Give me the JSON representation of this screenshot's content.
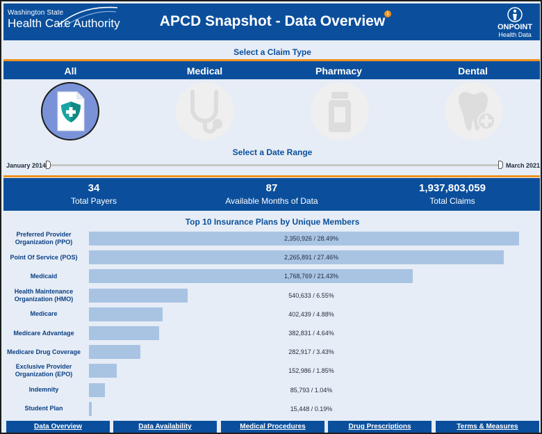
{
  "header": {
    "logo_line1": "Washington State",
    "logo_line2": "Health Care Authority",
    "title": "APCD Snapshot - Data Overview",
    "info_badge": "i",
    "partner_line1": "ONPOINT",
    "partner_line2": "Health Data"
  },
  "claim_type": {
    "heading": "Select a Claim Type",
    "options": [
      {
        "label": "All",
        "icon": "shield-plus-document-icon",
        "selected": true
      },
      {
        "label": "Medical",
        "icon": "stethoscope-icon",
        "selected": false
      },
      {
        "label": "Pharmacy",
        "icon": "pill-bottle-icon",
        "selected": false
      },
      {
        "label": "Dental",
        "icon": "tooth-plus-icon",
        "selected": false
      }
    ]
  },
  "date_range": {
    "heading": "Select a Date Range",
    "start": "January 2014",
    "end": "March 2021",
    "start_fraction": 0,
    "end_fraction": 1
  },
  "stats": [
    {
      "value": "34",
      "label": "Total Payers"
    },
    {
      "value": "87",
      "label": "Available Months of Data"
    },
    {
      "value": "1,937,803,059",
      "label": "Total Claims"
    }
  ],
  "chart_data": {
    "type": "bar",
    "orientation": "horizontal",
    "title": "Top 10 Insurance Plans by Unique Members",
    "categories": [
      "Preferred Provider Organization (PPO)",
      "Point Of Service (POS)",
      "Medicaid",
      "Health Maintenance Organization (HMO)",
      "Medicare",
      "Medicare Advantage",
      "Medicare Drug Coverage",
      "Exclusive Provider Organization (EPO)",
      "Indemnity",
      "Student Plan"
    ],
    "values": [
      2350926,
      2265891,
      1768769,
      540633,
      402439,
      382831,
      282917,
      152986,
      85793,
      15448
    ],
    "data_labels": [
      "2,350,926 / 28.49%",
      "2,265,891 / 27.46%",
      "1,768,769 / 21.43%",
      "540,633 / 6.55%",
      "402,439 / 4.88%",
      "382,831 / 4.64%",
      "282,917 / 3.43%",
      "152,986 / 1.85%",
      "85,793 / 1.04%",
      "15,448 / 0.19%"
    ],
    "bar_color": "#a9c3e3",
    "label_color": "#0b3f84"
  },
  "nav": [
    "Data Overview",
    "Data Availability",
    "Medical Procedures",
    "Drug Prescriptions",
    "Terms & Measures"
  ],
  "colors": {
    "brand_blue": "#0b4f9c",
    "accent_orange": "#f09320",
    "page_background": "#e6edf6"
  }
}
